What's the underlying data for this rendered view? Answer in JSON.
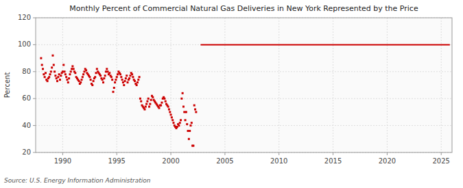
{
  "chart_data": {
    "type": "scatter",
    "title": "Monthly Percent of Commercial Natural Gas Deliveries in New York Represented by the Price",
    "ylabel": "Percent",
    "source": "Source: U.S. Energy Information Administration",
    "xlim": [
      1987.5,
      2026.0
    ],
    "xticks": [
      1990,
      1995,
      2000,
      2005,
      2010,
      2015,
      2020,
      2025
    ],
    "ylim": [
      20,
      120
    ],
    "yticks": [
      20,
      40,
      60,
      80,
      100,
      120
    ],
    "grid": true,
    "series": [
      {
        "type": "scatter",
        "color": "#CC0000",
        "marker": "square",
        "x": [
          1988.0,
          1988.083,
          1988.167,
          1988.25,
          1988.333,
          1988.417,
          1988.5,
          1988.583,
          1988.667,
          1988.75,
          1988.833,
          1988.917,
          1989.0,
          1989.083,
          1989.167,
          1989.25,
          1989.333,
          1989.417,
          1989.5,
          1989.583,
          1989.667,
          1989.75,
          1989.833,
          1989.917,
          1990.0,
          1990.083,
          1990.167,
          1990.25,
          1990.333,
          1990.417,
          1990.5,
          1990.583,
          1990.667,
          1990.75,
          1990.833,
          1990.917,
          1991.0,
          1991.083,
          1991.167,
          1991.25,
          1991.333,
          1991.417,
          1991.5,
          1991.583,
          1991.667,
          1991.75,
          1991.833,
          1991.917,
          1992.0,
          1992.083,
          1992.167,
          1992.25,
          1992.333,
          1992.417,
          1992.5,
          1992.583,
          1992.667,
          1992.75,
          1992.833,
          1992.917,
          1993.0,
          1993.083,
          1993.167,
          1993.25,
          1993.333,
          1993.417,
          1993.5,
          1993.583,
          1993.667,
          1993.75,
          1993.833,
          1993.917,
          1994.0,
          1994.083,
          1994.167,
          1994.25,
          1994.333,
          1994.417,
          1994.5,
          1994.583,
          1994.667,
          1994.75,
          1994.833,
          1994.917,
          1995.0,
          1995.083,
          1995.167,
          1995.25,
          1995.333,
          1995.417,
          1995.5,
          1995.583,
          1995.667,
          1995.75,
          1995.833,
          1995.917,
          1996.0,
          1996.083,
          1996.167,
          1996.25,
          1996.333,
          1996.417,
          1996.5,
          1996.583,
          1996.667,
          1996.75,
          1996.833,
          1996.917,
          1997.0,
          1997.083,
          1997.167,
          1997.25,
          1997.333,
          1997.417,
          1997.5,
          1997.583,
          1997.667,
          1997.75,
          1997.833,
          1997.917,
          1998.0,
          1998.083,
          1998.167,
          1998.25,
          1998.333,
          1998.417,
          1998.5,
          1998.583,
          1998.667,
          1998.75,
          1998.833,
          1998.917,
          1999.0,
          1999.083,
          1999.167,
          1999.25,
          1999.333,
          1999.417,
          1999.5,
          1999.583,
          1999.667,
          1999.75,
          1999.833,
          1999.917,
          2000.0,
          2000.083,
          2000.167,
          2000.25,
          2000.333,
          2000.417,
          2000.5,
          2000.583,
          2000.667,
          2000.75,
          2000.833,
          2000.917,
          2001.0,
          2001.083,
          2001.167,
          2001.25,
          2001.333,
          2001.417,
          2001.5,
          2001.583,
          2001.667,
          2001.75,
          2001.833,
          2001.917,
          2002.0,
          2002.083,
          2002.167,
          2002.25,
          2002.333
        ],
        "values": [
          90,
          85,
          82,
          78,
          76,
          79,
          74,
          73,
          75,
          76,
          78,
          80,
          83,
          92,
          85,
          80,
          77,
          75,
          73,
          76,
          78,
          74,
          77,
          79,
          80,
          85,
          80,
          78,
          76,
          74,
          72,
          75,
          78,
          80,
          82,
          84,
          82,
          80,
          79,
          76,
          75,
          74,
          73,
          71,
          72,
          74,
          76,
          78,
          80,
          82,
          81,
          79,
          78,
          77,
          76,
          74,
          71,
          70,
          73,
          75,
          76,
          79,
          82,
          80,
          79,
          78,
          77,
          75,
          74,
          72,
          75,
          77,
          80,
          82,
          80,
          78,
          79,
          77,
          76,
          74,
          65,
          68,
          72,
          74,
          76,
          78,
          80,
          79,
          78,
          76,
          74,
          72,
          70,
          73,
          75,
          77,
          72,
          74,
          75,
          77,
          79,
          78,
          76,
          74,
          73,
          71,
          70,
          72,
          74,
          76,
          60,
          58,
          55,
          54,
          53,
          52,
          54,
          56,
          58,
          60,
          54,
          56,
          59,
          62,
          61,
          59,
          58,
          57,
          56,
          55,
          54,
          53,
          55,
          55,
          57,
          60,
          61,
          60,
          58,
          56,
          55,
          54,
          52,
          50,
          48,
          46,
          44,
          42,
          40,
          39,
          38,
          39,
          41,
          40,
          42,
          44,
          60,
          64,
          54,
          50,
          44,
          50,
          41,
          36,
          30,
          36,
          40,
          42,
          25,
          25,
          55,
          52,
          50
        ]
      },
      {
        "type": "line",
        "color": "#CC0000",
        "x": [
          2002.75,
          2025.8
        ],
        "values": [
          100,
          100
        ]
      }
    ]
  }
}
